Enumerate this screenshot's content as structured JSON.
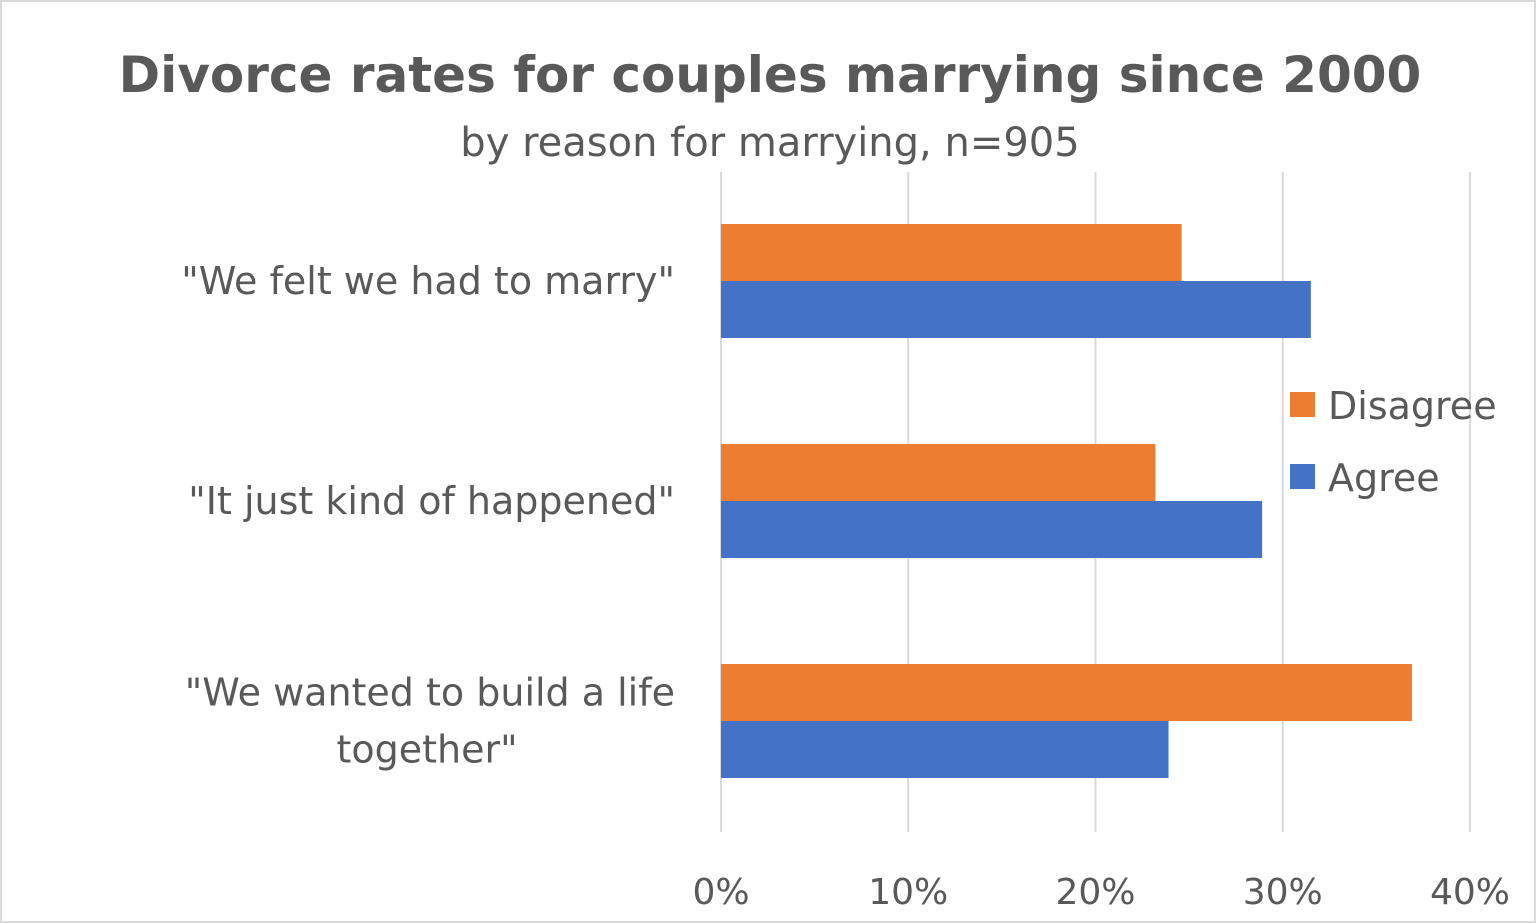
{
  "chart_data": {
    "type": "bar",
    "orientation": "horizontal",
    "title": "Divorce rates for couples marrying since 2000",
    "subtitle": "by reason for marrying, n=905",
    "categories": [
      [
        "\"We felt we had to marry\""
      ],
      [
        "\"It just kind of happened\""
      ],
      [
        "\"We wanted to build a life",
        "together\""
      ]
    ],
    "series": [
      {
        "name": "Disagree",
        "color": "#ED7D31",
        "values": [
          24.6,
          23.2,
          36.9
        ]
      },
      {
        "name": "Agree",
        "color": "#4472C4",
        "values": [
          31.5,
          28.9,
          23.9
        ]
      }
    ],
    "xlim": [
      0,
      40
    ],
    "xticks": [
      0,
      10,
      20,
      30,
      40
    ],
    "xtick_labels": [
      "0%",
      "10%",
      "20%",
      "30%",
      "40%"
    ],
    "unit": "%",
    "grid": "vertical",
    "legend": "right",
    "xlabel": "",
    "ylabel": ""
  }
}
